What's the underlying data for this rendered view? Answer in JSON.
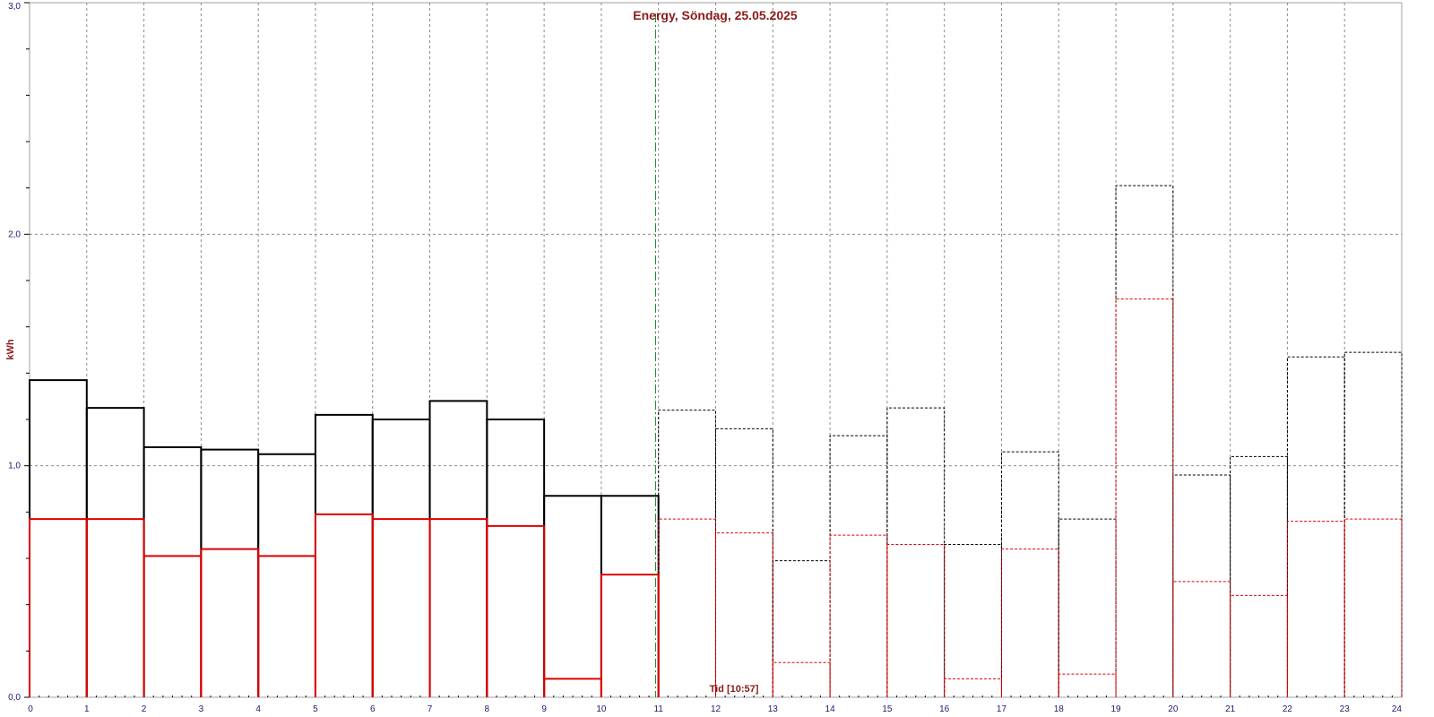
{
  "chart_data": {
    "type": "bar",
    "title": "Energy, Söndag, 25.05.2025",
    "xlabel": "Tid [10:57]",
    "ylabel": "kWh",
    "xlim": [
      0,
      24
    ],
    "ylim": [
      0,
      3
    ],
    "x_ticks": [
      "0",
      "1",
      "2",
      "3",
      "4",
      "5",
      "6",
      "7",
      "8",
      "9",
      "10",
      "11",
      "12",
      "13",
      "14",
      "15",
      "16",
      "17",
      "18",
      "19",
      "20",
      "21",
      "22",
      "23",
      "24"
    ],
    "y_ticks": [
      "0,0",
      "1,0",
      "2,0",
      "3,0"
    ],
    "y_tick_values": [
      0,
      1,
      2,
      3
    ],
    "current_time_hour": 10.95,
    "grid": true,
    "colors": {
      "total": "#000000",
      "secondary": "#dd0000",
      "now_line": "#228b22",
      "grid": "#8c8c8c",
      "tick_label": "#1a1a6e",
      "title": "#8b1a1a"
    },
    "series": [
      {
        "key": "total",
        "values": [
          1.37,
          1.25,
          1.08,
          1.07,
          1.05,
          1.22,
          1.2,
          1.28,
          1.2,
          0.87,
          0.87,
          1.24,
          1.16,
          0.59,
          1.13,
          1.25,
          0.66,
          1.06,
          0.77,
          2.21,
          0.96,
          1.04,
          1.47,
          1.49
        ],
        "measured_hours": 11
      },
      {
        "key": "secondary",
        "values": [
          0.77,
          0.77,
          0.61,
          0.64,
          0.61,
          0.79,
          0.77,
          0.77,
          0.74,
          0.08,
          0.53,
          0.77,
          0.71,
          0.15,
          0.7,
          0.66,
          0.08,
          0.64,
          0.1,
          1.72,
          0.5,
          0.44,
          0.76,
          0.77
        ],
        "measured_hours": 11
      }
    ]
  }
}
